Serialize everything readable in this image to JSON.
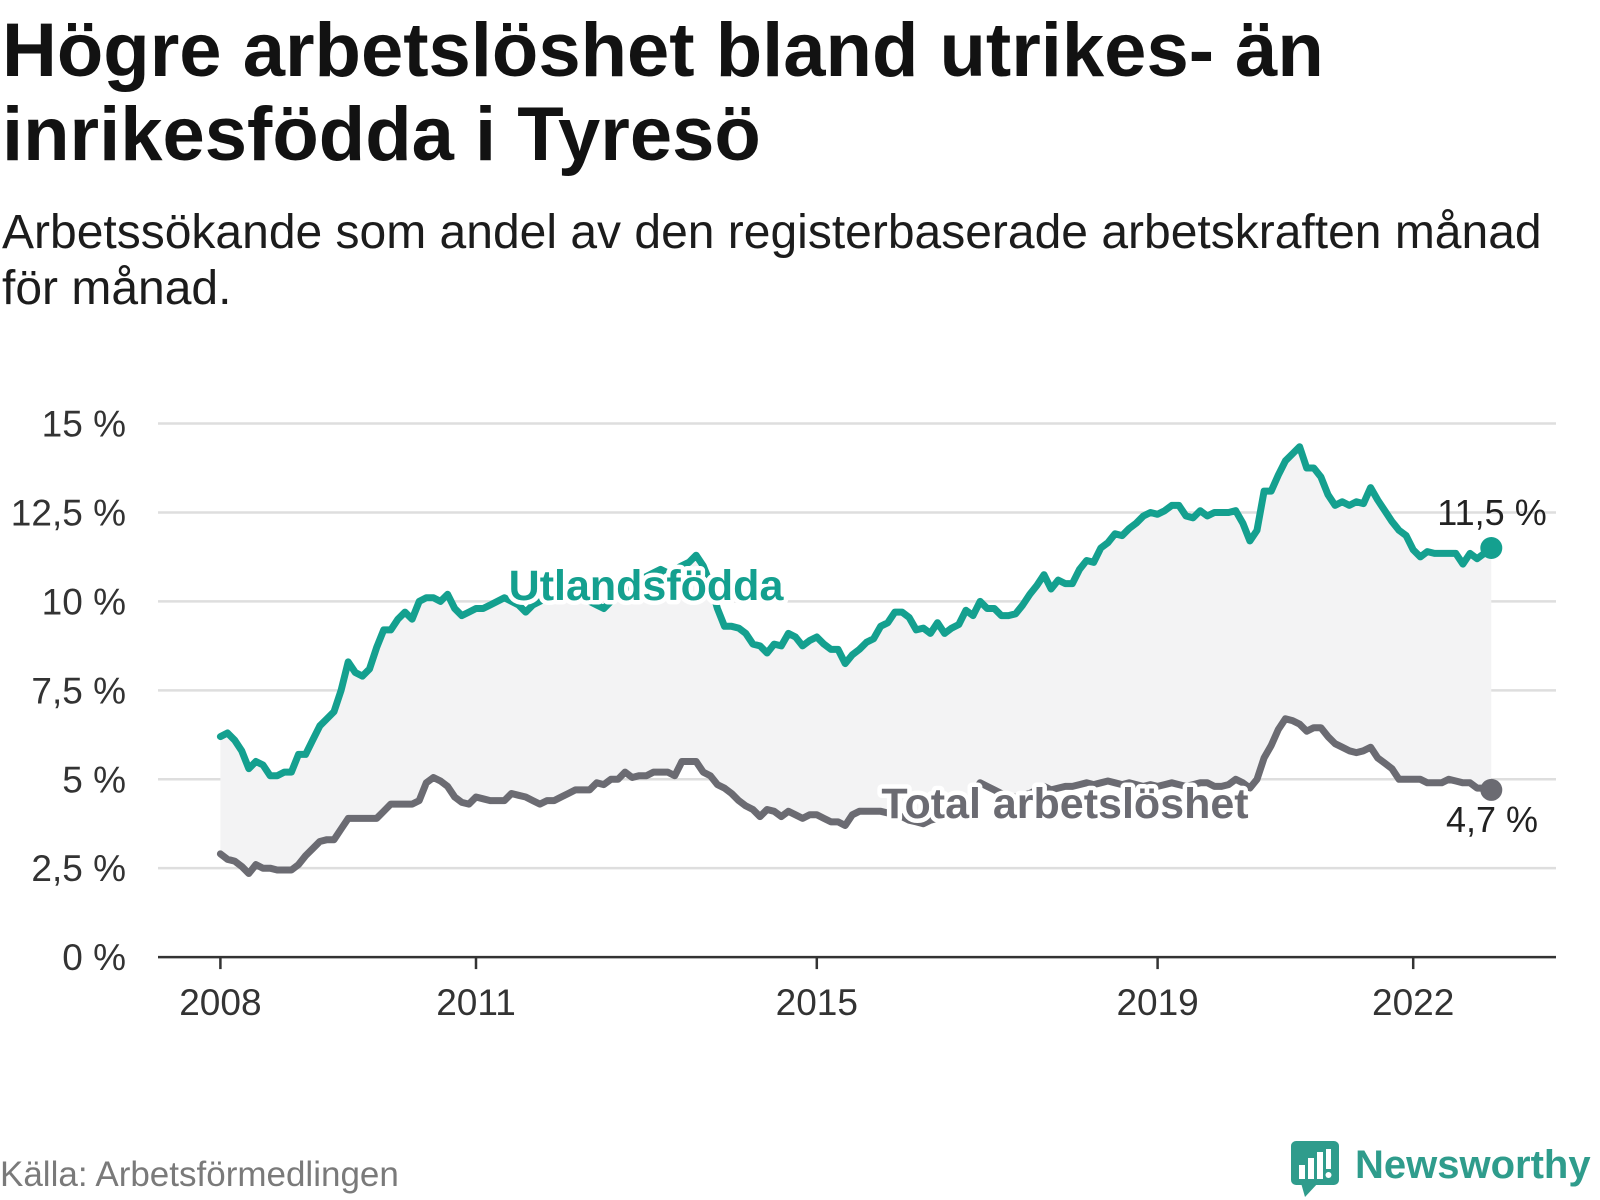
{
  "chart_data": {
    "type": "line",
    "title": "Högre arbetslöshet bland utrikes- än inrikesfödda i Tyresö",
    "subtitle": "Arbetssökande som andel av den registerbaserade arbetskraften månad för månad.",
    "xlabel": "",
    "ylabel": "",
    "ylim": [
      0,
      15
    ],
    "x_start": 2008,
    "points_per_year": 12,
    "xticks": [
      {
        "value": 2008,
        "label": "2008"
      },
      {
        "value": 2011,
        "label": "2011"
      },
      {
        "value": 2015,
        "label": "2015"
      },
      {
        "value": 2019,
        "label": "2019"
      },
      {
        "value": 2022,
        "label": "2022"
      }
    ],
    "yticks": [
      {
        "value": 0,
        "label": "0 %"
      },
      {
        "value": 2.5,
        "label": "2,5 %"
      },
      {
        "value": 5,
        "label": "5 %"
      },
      {
        "value": 7.5,
        "label": "7,5 %"
      },
      {
        "value": 10,
        "label": "10 %"
      },
      {
        "value": 12.5,
        "label": "12,5 %"
      },
      {
        "value": 15,
        "label": "15 %"
      }
    ],
    "grid": true,
    "band_between_series": true,
    "band_color": "#f3f3f4",
    "grid_color": "#dedede",
    "axis_color": "#333333",
    "series": [
      {
        "name": "Utlandsfödda",
        "color": "#14a08f",
        "end_value": 11.5,
        "end_label": "11,5 %",
        "values": [
          6.2,
          6.3,
          6.1,
          5.8,
          5.3,
          5.5,
          5.4,
          5.1,
          5.1,
          5.2,
          5.2,
          5.7,
          5.7,
          6.1,
          6.5,
          6.7,
          6.9,
          7.5,
          8.3,
          8.0,
          7.9,
          8.1,
          8.7,
          9.2,
          9.2,
          9.5,
          9.7,
          9.5,
          10.0,
          10.1,
          10.1,
          10.0,
          10.2,
          9.8,
          9.6,
          9.7,
          9.8,
          9.8,
          9.9,
          10.0,
          10.1,
          10.0,
          9.9,
          9.7,
          9.9,
          10.0,
          10.1,
          10.2,
          10.3,
          10.2,
          10.3,
          10.1,
          10.0,
          9.9,
          9.8,
          10.0,
          10.2,
          10.3,
          10.5,
          10.6,
          10.7,
          10.8,
          10.9,
          10.8,
          10.9,
          11.0,
          11.1,
          11.3,
          11.0,
          10.5,
          9.8,
          9.3,
          9.3,
          9.25,
          9.1,
          8.8,
          8.75,
          8.55,
          8.8,
          8.75,
          9.1,
          9.0,
          8.75,
          8.9,
          9.0,
          8.8,
          8.65,
          8.65,
          8.25,
          8.5,
          8.65,
          8.85,
          8.95,
          9.3,
          9.4,
          9.7,
          9.7,
          9.55,
          9.2,
          9.25,
          9.1,
          9.4,
          9.1,
          9.25,
          9.35,
          9.75,
          9.6,
          10.0,
          9.8,
          9.8,
          9.6,
          9.6,
          9.65,
          9.9,
          10.2,
          10.45,
          10.75,
          10.35,
          10.6,
          10.5,
          10.5,
          10.9,
          11.15,
          11.1,
          11.5,
          11.65,
          11.9,
          11.85,
          12.05,
          12.2,
          12.4,
          12.5,
          12.45,
          12.55,
          12.7,
          12.7,
          12.4,
          12.35,
          12.55,
          12.4,
          12.5,
          12.5,
          12.5,
          12.55,
          12.2,
          11.7,
          12.0,
          13.1,
          13.1,
          13.55,
          13.95,
          14.15,
          14.35,
          13.75,
          13.75,
          13.5,
          13.0,
          12.7,
          12.8,
          12.7,
          12.8,
          12.75,
          13.2,
          12.85,
          12.55,
          12.25,
          12.0,
          11.85,
          11.45,
          11.25,
          11.4,
          11.35,
          11.35,
          11.35,
          11.35,
          11.05,
          11.35,
          11.2,
          11.35,
          11.5
        ]
      },
      {
        "name": "Total arbetslöshet",
        "color": "#6b6b72",
        "end_value": 4.7,
        "end_label": "4,7 %",
        "values": [
          2.9,
          2.75,
          2.7,
          2.55,
          2.35,
          2.6,
          2.5,
          2.5,
          2.45,
          2.45,
          2.45,
          2.6,
          2.85,
          3.05,
          3.25,
          3.3,
          3.3,
          3.6,
          3.9,
          3.9,
          3.9,
          3.9,
          3.9,
          4.1,
          4.3,
          4.3,
          4.3,
          4.3,
          4.4,
          4.9,
          5.05,
          4.95,
          4.8,
          4.5,
          4.35,
          4.3,
          4.5,
          4.45,
          4.4,
          4.4,
          4.4,
          4.6,
          4.55,
          4.5,
          4.4,
          4.3,
          4.4,
          4.4,
          4.5,
          4.6,
          4.7,
          4.7,
          4.7,
          4.9,
          4.85,
          5.0,
          5.0,
          5.2,
          5.05,
          5.1,
          5.1,
          5.2,
          5.2,
          5.2,
          5.1,
          5.5,
          5.5,
          5.5,
          5.2,
          5.1,
          4.85,
          4.75,
          4.6,
          4.4,
          4.25,
          4.15,
          3.95,
          4.15,
          4.1,
          3.95,
          4.1,
          4.0,
          3.9,
          4.0,
          4.0,
          3.9,
          3.8,
          3.8,
          3.7,
          4.0,
          4.1,
          4.1,
          4.1,
          4.1,
          4.05,
          4.0,
          3.95,
          3.85,
          3.8,
          3.75,
          3.85,
          3.9,
          4.0,
          4.1,
          4.2,
          4.4,
          4.6,
          4.9,
          4.8,
          4.7,
          4.6,
          4.5,
          4.5,
          4.55,
          4.6,
          4.7,
          4.8,
          4.7,
          4.75,
          4.8,
          4.8,
          4.85,
          4.9,
          4.85,
          4.9,
          4.95,
          4.9,
          4.85,
          4.9,
          4.85,
          4.8,
          4.85,
          4.8,
          4.85,
          4.9,
          4.85,
          4.8,
          4.85,
          4.9,
          4.9,
          4.8,
          4.8,
          4.85,
          5.0,
          4.9,
          4.75,
          5.0,
          5.6,
          5.95,
          6.4,
          6.7,
          6.65,
          6.55,
          6.35,
          6.45,
          6.45,
          6.2,
          6.0,
          5.9,
          5.8,
          5.75,
          5.8,
          5.9,
          5.6,
          5.45,
          5.3,
          5.0,
          5.0,
          5.0,
          5.0,
          4.9,
          4.9,
          4.9,
          5.0,
          4.95,
          4.9,
          4.9,
          4.75,
          4.75,
          4.7
        ]
      }
    ]
  },
  "source": "Källa: Arbetsförmedlingen",
  "brand": {
    "name": "Newsworthy",
    "color": "#2f9c8c",
    "icon": "newsworthy-logo-icon"
  }
}
